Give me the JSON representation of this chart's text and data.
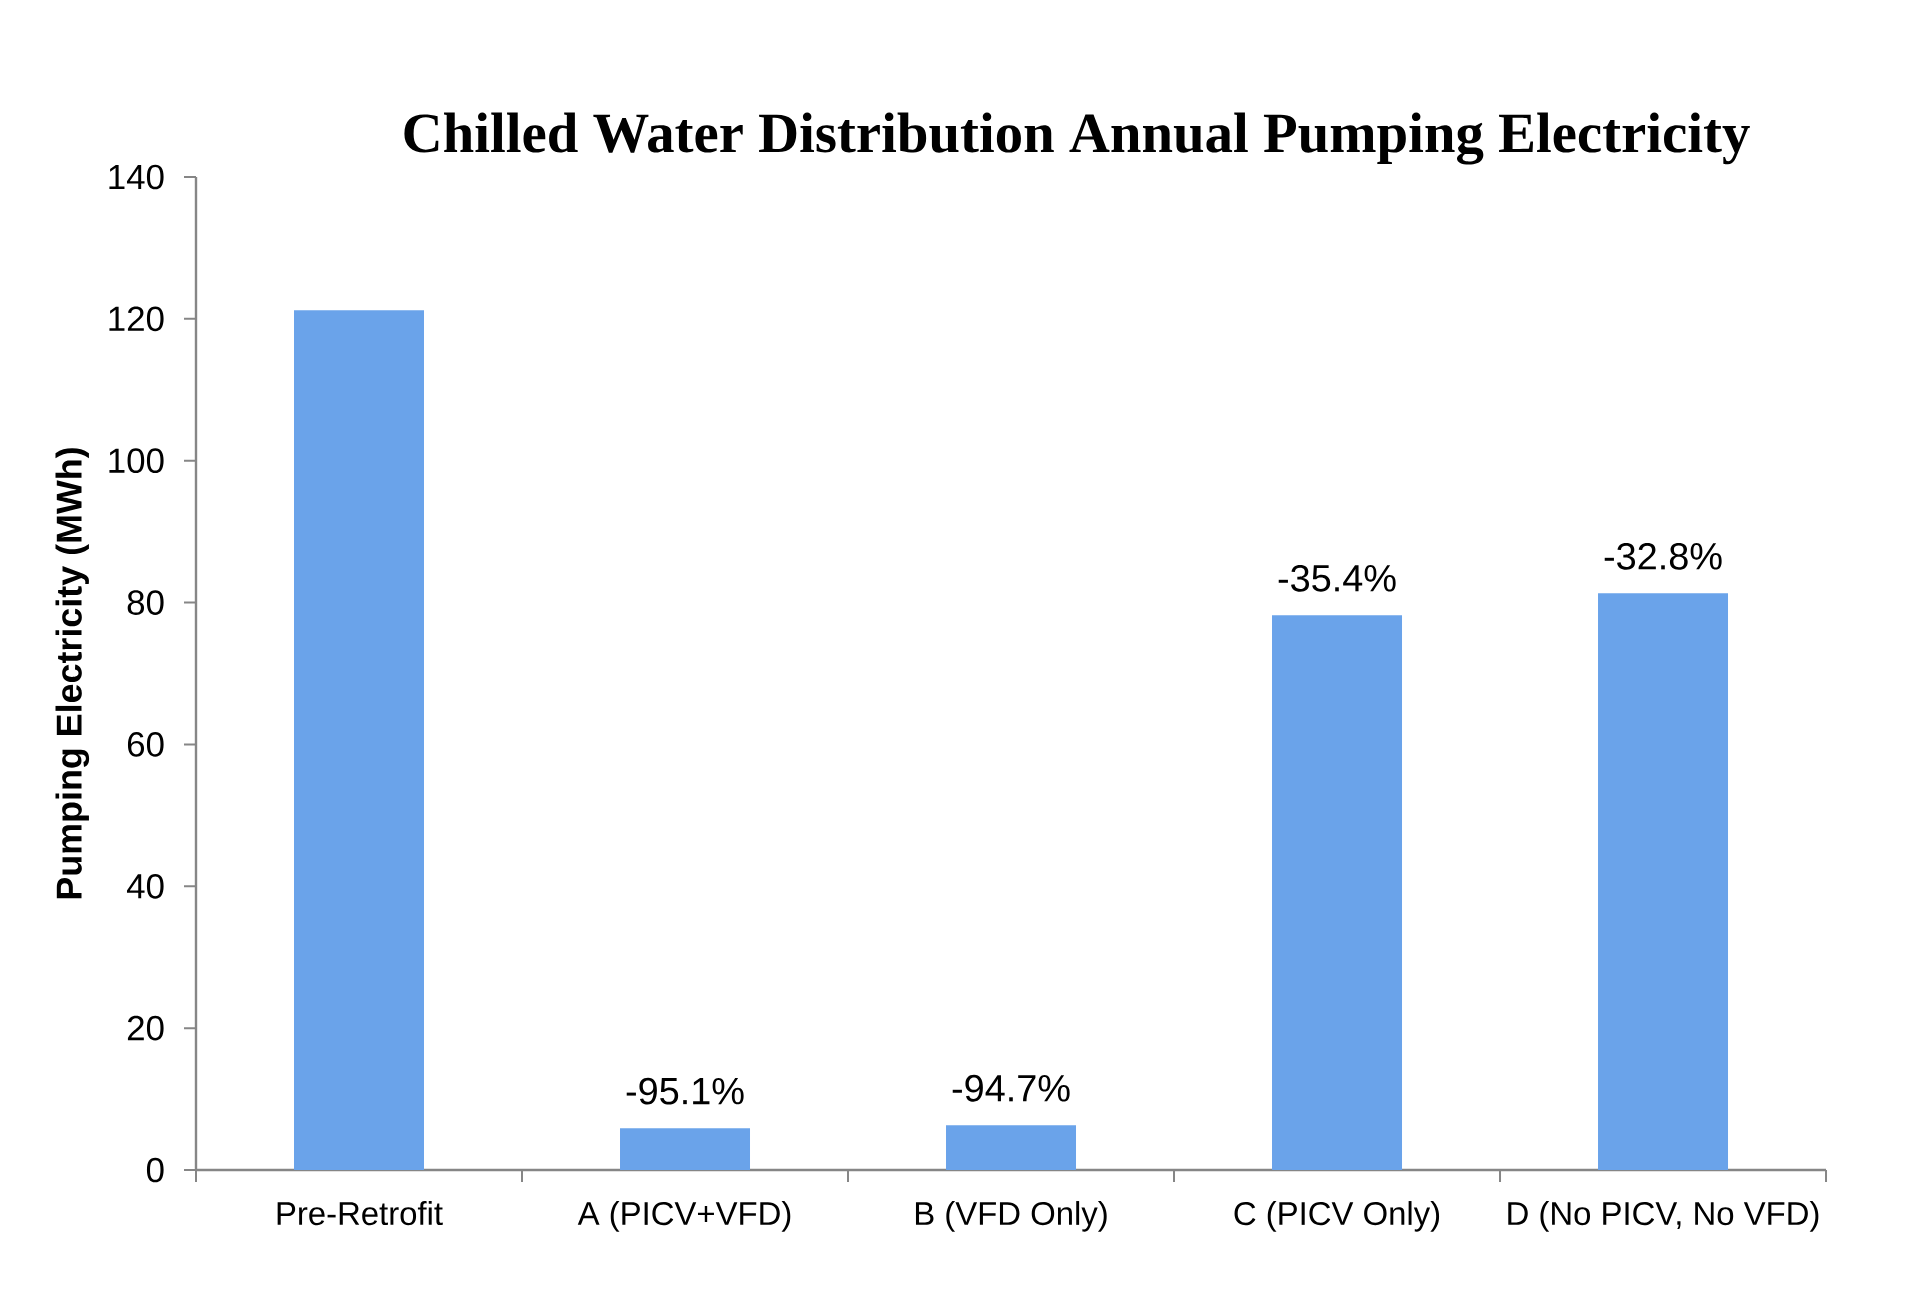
{
  "chart_data": {
    "type": "bar",
    "title": "Chilled Water Distribution Annual Pumping Electricity",
    "ylabel": "Pumping Electricity (MWh)",
    "categories": [
      "Pre-Retrofit",
      "A (PICV+VFD)",
      "B (VFD Only)",
      "C (PICV Only)",
      "D (No PICV, No VFD)"
    ],
    "values": [
      121.2,
      5.9,
      6.3,
      78.2,
      81.3
    ],
    "annotations": [
      {
        "text": "-95.1%",
        "x": "A (PICV+VFD)",
        "y": 5.9
      },
      {
        "text": "-94.7%",
        "x": "B (VFD Only)",
        "y": 6.3
      },
      {
        "text": "-35.4%",
        "x": "C (PICV Only)",
        "y": 78.2
      },
      {
        "text": "-32.8%",
        "x": "D (No PICV, No VFD)",
        "y": 81.3
      }
    ],
    "color": "#6aa3ea",
    "ylim": [
      0,
      140
    ],
    "yticks": [
      0,
      20,
      40,
      60,
      80,
      100,
      120,
      140
    ]
  }
}
